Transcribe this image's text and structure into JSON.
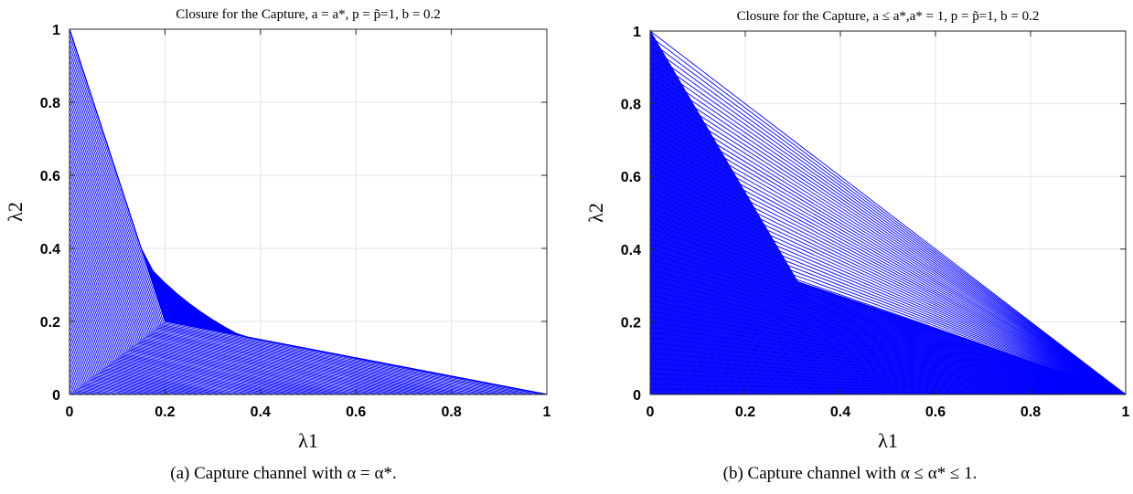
{
  "chart_data": [
    {
      "type": "line",
      "title": "Closure for the Capture, a = a*, p = p̃=1, b = 0.2",
      "xlabel": "λ1",
      "ylabel": "λ2",
      "xlim": [
        0,
        1
      ],
      "ylim": [
        0,
        1
      ],
      "xticks": [
        "0",
        "0.2",
        "0.4",
        "0.6",
        "0.8",
        "1"
      ],
      "yticks": [
        "0",
        "0.2",
        "0.4",
        "0.6",
        "0.8",
        "1"
      ],
      "grid": true,
      "series_color": "#0000ff",
      "vertices": [
        [
          0,
          1
        ],
        [
          0.2,
          0.2
        ],
        [
          1,
          0
        ]
      ],
      "caption": "(a) Capture channel with α = α*."
    },
    {
      "type": "line",
      "title": "Closure for the Capture, a ≤ a*,a* = 1, p = p̃=1, b = 0.2",
      "xlabel": "λ1",
      "ylabel": "λ2",
      "xlim": [
        0,
        1
      ],
      "ylim": [
        0,
        1
      ],
      "xticks": [
        "0",
        "0.2",
        "0.4",
        "0.6",
        "0.8",
        "1"
      ],
      "yticks": [
        "0",
        "0.2",
        "0.4",
        "0.6",
        "0.8",
        "1"
      ],
      "grid": true,
      "series_color": "#0000ff",
      "vertices": [
        [
          0,
          1
        ],
        [
          0.31,
          0.31
        ],
        [
          1,
          0
        ]
      ],
      "caption": "(b) Capture channel with α ≤ α* ≤ 1."
    }
  ]
}
